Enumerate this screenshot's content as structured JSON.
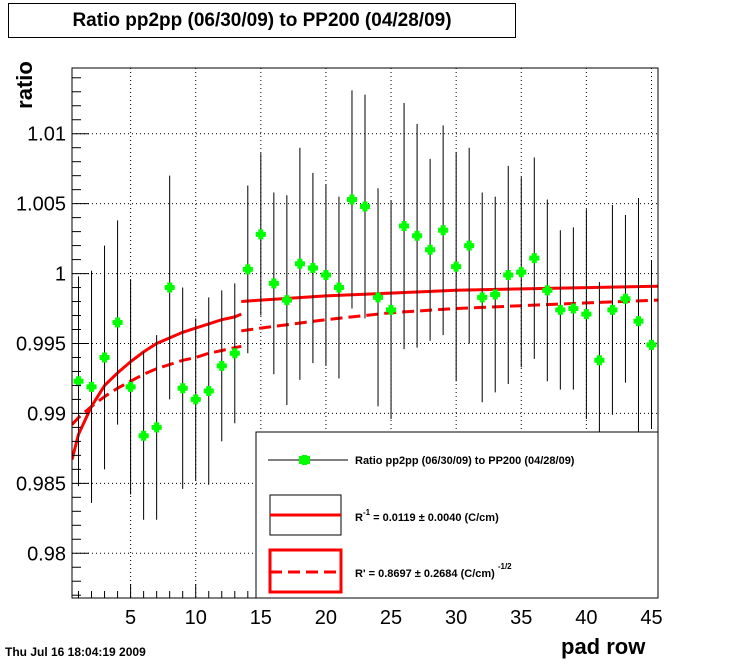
{
  "title": "Ratio pp2pp (06/30/09) to PP200 (04/28/09)",
  "timestamp": "Thu Jul 16 18:04:19 2009",
  "chart_data": {
    "type": "scatter",
    "xlabel": "pad row",
    "ylabel": "ratio",
    "xlim": [
      0.5,
      45.5
    ],
    "ylim": [
      0.9768,
      1.0147
    ],
    "x_ticks": [
      5,
      10,
      15,
      20,
      25,
      30,
      35,
      40,
      45
    ],
    "y_ticks": [
      0.98,
      0.985,
      0.99,
      0.995,
      1,
      1.005,
      1.01
    ],
    "y_tick_labels": [
      "0.98",
      "0.985",
      "0.99",
      "0.995",
      "1",
      "1.005",
      "1.01"
    ],
    "grid": true,
    "series": [
      {
        "name": "Ratio pp2pp (06/30/09) to PP200 (04/28/09)",
        "color": "#00ff00",
        "x": [
          1,
          2,
          3,
          4,
          5,
          6,
          7,
          8,
          9,
          10,
          11,
          12,
          13,
          14,
          15,
          16,
          17,
          18,
          19,
          20,
          21,
          22,
          23,
          24,
          25,
          26,
          27,
          28,
          29,
          30,
          31,
          32,
          33,
          34,
          35,
          36,
          37,
          38,
          39,
          40,
          41,
          42,
          43,
          44,
          45
        ],
        "y": [
          0.9923,
          0.9919,
          0.994,
          0.9965,
          0.9919,
          0.9884,
          0.989,
          0.999,
          0.9918,
          0.991,
          0.9916,
          0.9934,
          0.9943,
          1.0003,
          1.0028,
          0.9993,
          0.9981,
          1.0007,
          1.0004,
          0.9999,
          0.999,
          1.0053,
          1.0048,
          0.9983,
          0.9974,
          1.0034,
          1.0027,
          1.0017,
          1.0031,
          1.0005,
          1.002,
          0.9983,
          0.9985,
          0.9999,
          1.0001,
          1.0011,
          0.9988,
          0.9974,
          0.9975,
          0.9971,
          0.9938,
          0.9974,
          0.9982,
          0.9966,
          0.9949
        ],
        "y_err": [
          0.0075,
          0.0083,
          0.008,
          0.0073,
          0.0077,
          0.006,
          0.0066,
          0.008,
          0.0072,
          0.0058,
          0.0067,
          0.0054,
          0.005,
          0.006,
          0.0058,
          0.0065,
          0.0075,
          0.0083,
          0.0068,
          0.0065,
          0.0065,
          0.0078,
          0.008,
          0.0078,
          0.0078,
          0.0088,
          0.008,
          0.0065,
          0.0075,
          0.0082,
          0.007,
          0.0075,
          0.007,
          0.0078,
          0.0068,
          0.0072,
          0.0065,
          0.0057,
          0.0058,
          0.0075,
          0.0056,
          0.0075,
          0.006,
          0.0088,
          0.006
        ]
      }
    ],
    "fits": [
      {
        "label_main": "R",
        "label_sup": "-1",
        "label_value": " = 0.0119 ± 0.0040 (C/cm)",
        "color": "#ff0000",
        "style": "solid",
        "segments": [
          {
            "x": [
              0.5,
              1,
              2,
              3,
              4,
              5,
              6,
              7,
              8,
              9,
              10,
              11,
              12,
              13,
              13.5
            ],
            "y": [
              0.9867,
              0.9885,
              0.9905,
              0.992,
              0.9929,
              0.9937,
              0.9944,
              0.995,
              0.9954,
              0.9958,
              0.9961,
              0.9964,
              0.9967,
              0.9969,
              0.9971
            ]
          },
          {
            "x": [
              13.5,
              15,
              20,
              25,
              30,
              35,
              40,
              45.5
            ],
            "y": [
              0.998,
              0.9981,
              0.9984,
              0.9986,
              0.9988,
              0.9989,
              0.999,
              0.9991
            ]
          }
        ]
      },
      {
        "label_main": "R'",
        "label_value": " = 0.8697  ± 0.2684 (C/cm)",
        "label_sup": "-1/2",
        "color": "#ff0000",
        "style": "dashed",
        "segments": [
          {
            "x": [
              0.5,
              1,
              2,
              3,
              4,
              5,
              6,
              7,
              8,
              9,
              10,
              11,
              12,
              13,
              13.5
            ],
            "y": [
              0.9892,
              0.9897,
              0.9905,
              0.9912,
              0.9918,
              0.9923,
              0.9928,
              0.9932,
              0.9935,
              0.9938,
              0.994,
              0.9943,
              0.9945,
              0.9947,
              0.9948
            ]
          },
          {
            "x": [
              13.5,
              15,
              20,
              25,
              30,
              35,
              40,
              45.5
            ],
            "y": [
              0.9959,
              0.9961,
              0.9967,
              0.9972,
              0.9975,
              0.9977,
              0.9979,
              0.9981
            ]
          }
        ]
      }
    ],
    "legend": {
      "position": "bottom-right",
      "entries": [
        {
          "label": "Ratio pp2pp (06/30/09) to PP200 (04/28/09)"
        }
      ]
    }
  }
}
